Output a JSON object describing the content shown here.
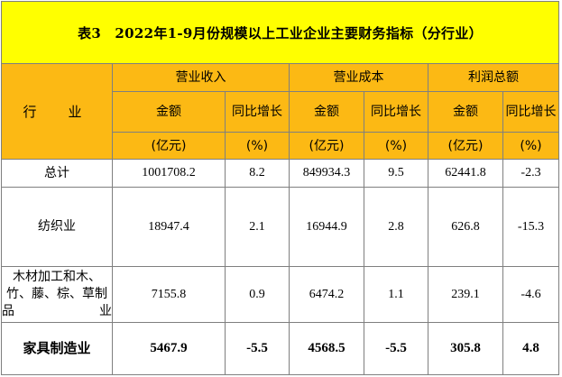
{
  "title": "表3　2022年1-9月份规模以上工业企业主要财务指标（分行业）",
  "header": {
    "industry": "行　业",
    "groups": [
      "营业收入",
      "营业成本",
      "利润总额"
    ],
    "amount": "金额",
    "yoy": "同比增长",
    "amount_unit": "(亿元)",
    "yoy_unit": "(%)"
  },
  "rows": [
    {
      "industry": "总计",
      "revenue": "1001708.2",
      "revenue_yoy": "8.2",
      "cost": "849934.3",
      "cost_yoy": "9.5",
      "profit": "62441.8",
      "profit_yoy": "-2.3"
    },
    {
      "industry": "纺织业",
      "revenue": "18947.4",
      "revenue_yoy": "2.1",
      "cost": "16944.9",
      "cost_yoy": "2.8",
      "profit": "626.8",
      "profit_yoy": "-15.3"
    },
    {
      "industry": "木材加工和木、竹、藤、棕、草制品业",
      "revenue": "7155.8",
      "revenue_yoy": "0.9",
      "cost": "6474.2",
      "cost_yoy": "1.1",
      "profit": "239.1",
      "profit_yoy": "-4.6"
    },
    {
      "industry": "家具制造业",
      "revenue": "5467.9",
      "revenue_yoy": "-5.5",
      "cost": "4568.5",
      "cost_yoy": "-5.5",
      "profit": "305.8",
      "profit_yoy": "4.8"
    }
  ]
}
